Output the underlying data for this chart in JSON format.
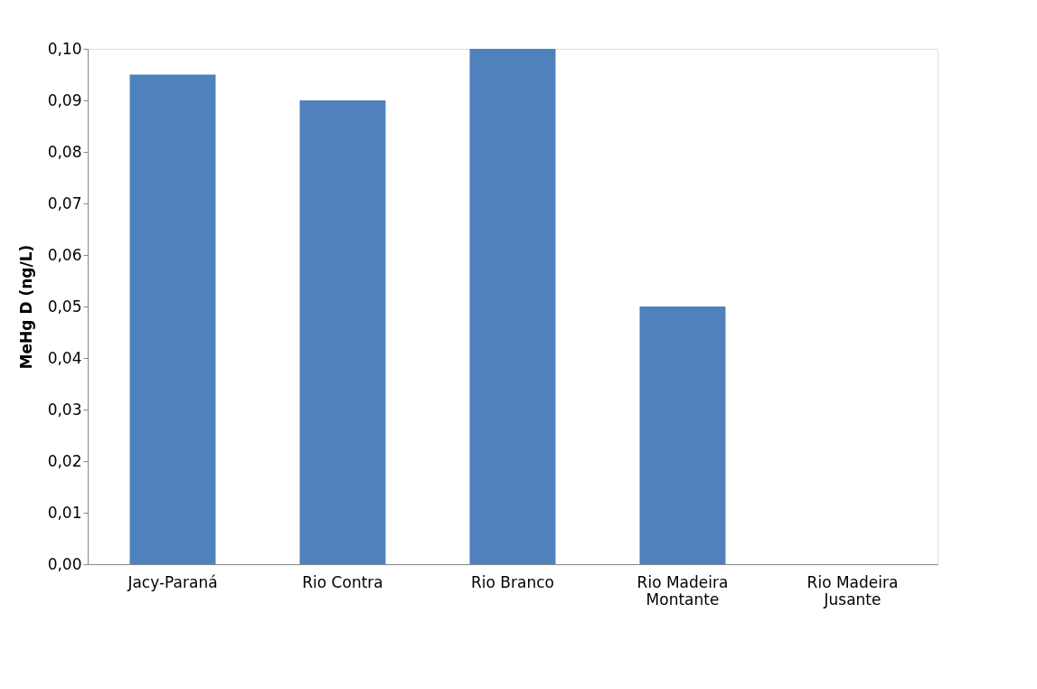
{
  "chart_data": {
    "type": "bar",
    "ylabel": "MeHg D (ng/L)",
    "categories": [
      "Jacy-Paraná",
      "Rio Contra",
      "Rio Branco",
      "Rio Madeira Montante",
      "Rio Madeira Jusante"
    ],
    "values": [
      0.095,
      0.09,
      0.1,
      0.05,
      0
    ],
    "color": "#4f81bd",
    "ylim": [
      0,
      0.1
    ],
    "yticks": [
      {
        "value": 0,
        "label": "0,00"
      },
      {
        "value": 0.01,
        "label": "0,01"
      },
      {
        "value": 0.02,
        "label": "0,02"
      },
      {
        "value": 0.03,
        "label": "0,03"
      },
      {
        "value": 0.04,
        "label": "0,04"
      },
      {
        "value": 0.05,
        "label": "0,05"
      },
      {
        "value": 0.06,
        "label": "0,06"
      },
      {
        "value": 0.07,
        "label": "0,07"
      },
      {
        "value": 0.08,
        "label": "0,08"
      },
      {
        "value": 0.09,
        "label": "0,09"
      },
      {
        "value": 0.1,
        "label": "0,10"
      }
    ],
    "grid": false
  }
}
